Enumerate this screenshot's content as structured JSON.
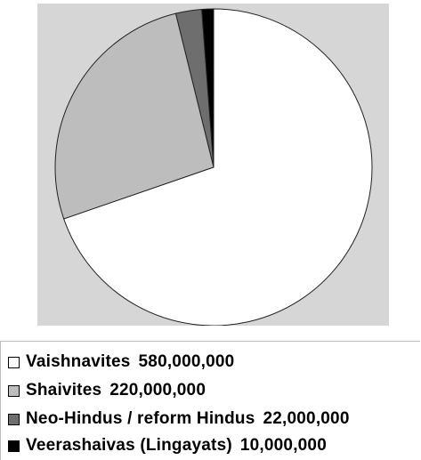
{
  "chart_data": {
    "type": "pie",
    "categories": [
      "Vaishnavites",
      "Shaivites",
      "Neo-Hindus / reform Hindus",
      "Veerashaivas (Lingayats)"
    ],
    "values": [
      580000000,
      220000000,
      22000000,
      10000000
    ],
    "value_labels": [
      "580,000,000",
      "220,000,000",
      "22,000,000",
      "10,000,000"
    ],
    "colors": [
      "#ffffff",
      "#bdbdbd",
      "#6e6e6e",
      "#000000"
    ],
    "legend_position": "bottom",
    "background": "#d6d6d6"
  }
}
